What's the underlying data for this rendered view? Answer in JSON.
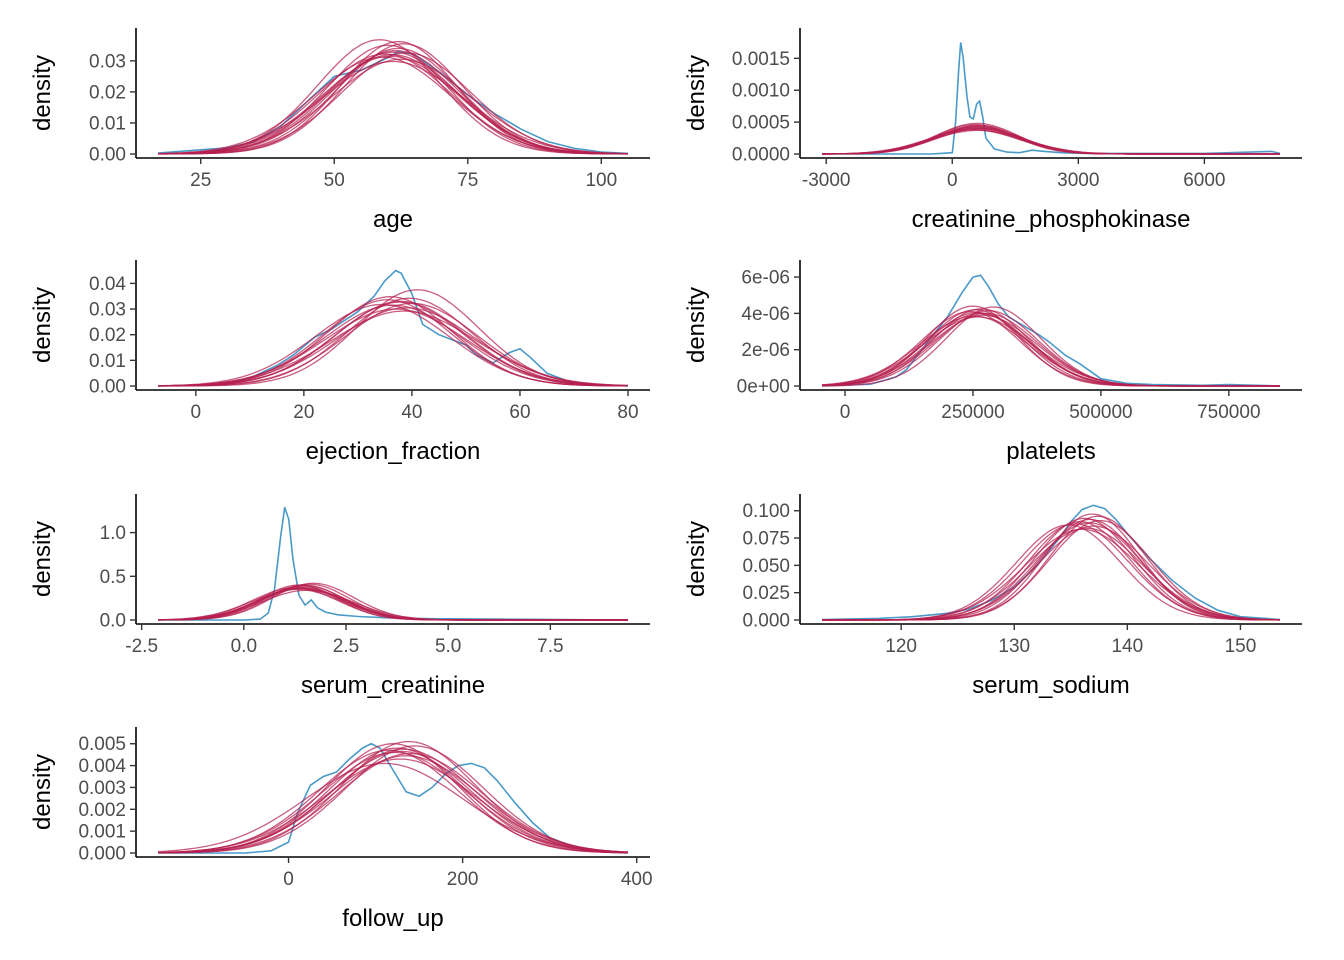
{
  "figure": {
    "colors": {
      "observed": "#4a9ac9",
      "imputed": "#b5204f"
    }
  },
  "chart_data": [
    {
      "type": "line",
      "title": "",
      "xlabel": "age",
      "ylabel": "density",
      "xlim": [
        17,
        105
      ],
      "ylim": [
        0,
        0.038
      ],
      "xticks": [
        25,
        50,
        75,
        100
      ],
      "yticks": [
        0.0,
        0.01,
        0.02,
        0.03
      ],
      "ytick_labels": [
        "0.00",
        "0.01",
        "0.02",
        "0.03"
      ],
      "grid": false,
      "legend": "none",
      "observed": {
        "x": [
          17,
          30,
          35,
          40,
          45,
          50,
          55,
          60,
          62,
          65,
          70,
          75,
          80,
          85,
          90,
          95,
          100,
          105
        ],
        "y": [
          0.0003,
          0.002,
          0.004,
          0.009,
          0.017,
          0.025,
          0.027,
          0.031,
          0.033,
          0.032,
          0.026,
          0.019,
          0.013,
          0.008,
          0.004,
          0.0018,
          0.0006,
          0.0002
        ]
      },
      "imputed": [
        {
          "mu": 61.0,
          "sd": 12.0,
          "peak": 0.0328
        },
        {
          "mu": 62.0,
          "sd": 11.6,
          "peak": 0.034
        },
        {
          "mu": 60.5,
          "sd": 12.6,
          "peak": 0.0315
        },
        {
          "mu": 63.0,
          "sd": 11.2,
          "peak": 0.0355
        },
        {
          "mu": 59.5,
          "sd": 12.3,
          "peak": 0.0322
        },
        {
          "mu": 61.5,
          "sd": 11.9,
          "peak": 0.0333
        },
        {
          "mu": 62.5,
          "sd": 12.9,
          "peak": 0.0305
        },
        {
          "mu": 60.0,
          "sd": 11.4,
          "peak": 0.035
        },
        {
          "mu": 58.5,
          "sd": 11.5,
          "peak": 0.0368
        },
        {
          "mu": 61.0,
          "sd": 13.2,
          "peak": 0.0298
        },
        {
          "mu": 63.5,
          "sd": 12.1,
          "peak": 0.0326
        },
        {
          "mu": 59.0,
          "sd": 12.7,
          "peak": 0.0312
        },
        {
          "mu": 62.0,
          "sd": 10.9,
          "peak": 0.0362
        },
        {
          "mu": 60.8,
          "sd": 12.4,
          "peak": 0.032
        }
      ]
    },
    {
      "type": "line",
      "title": "",
      "xlabel": "creatinine_phosphokinase",
      "ylabel": "density",
      "xlim": [
        -3100,
        7800
      ],
      "ylim": [
        0,
        0.00185
      ],
      "xticks": [
        -3000,
        0,
        3000,
        6000
      ],
      "yticks": [
        0.0,
        0.0005,
        0.001,
        0.0015
      ],
      "ytick_labels": [
        "0.0000",
        "0.0005",
        "0.0010",
        "0.0015"
      ],
      "grid": false,
      "legend": "none",
      "observed": {
        "x": [
          -3100,
          -500,
          0,
          80,
          150,
          200,
          260,
          350,
          420,
          500,
          580,
          650,
          720,
          800,
          1000,
          1300,
          1600,
          1900,
          2200,
          2600,
          3200,
          4500,
          6000,
          7600,
          7800
        ],
        "y": [
          0,
          0,
          2e-05,
          0.0005,
          0.0013,
          0.00175,
          0.0015,
          0.0009,
          0.00058,
          0.00055,
          0.00078,
          0.00083,
          0.0006,
          0.00025,
          8e-05,
          3e-05,
          2e-05,
          6e-05,
          4e-05,
          2e-05,
          1e-05,
          1e-05,
          1e-05,
          4e-05,
          1e-05
        ]
      },
      "imputed": [
        {
          "mu": 560,
          "sd": 1010,
          "peak": 0.00041
        },
        {
          "mu": 600,
          "sd": 980,
          "peak": 0.00043
        },
        {
          "mu": 520,
          "sd": 1060,
          "peak": 0.00039
        },
        {
          "mu": 640,
          "sd": 960,
          "peak": 0.00045
        },
        {
          "mu": 500,
          "sd": 1080,
          "peak": 0.00038
        },
        {
          "mu": 580,
          "sd": 1000,
          "peak": 0.00042
        },
        {
          "mu": 660,
          "sd": 1030,
          "peak": 0.0004
        },
        {
          "mu": 540,
          "sd": 940,
          "peak": 0.00046
        },
        {
          "mu": 610,
          "sd": 1110,
          "peak": 0.00037
        },
        {
          "mu": 570,
          "sd": 990,
          "peak": 0.00044
        },
        {
          "mu": 630,
          "sd": 1050,
          "peak": 0.0004
        },
        {
          "mu": 590,
          "sd": 970,
          "peak": 0.00048
        }
      ]
    },
    {
      "type": "line",
      "title": "",
      "xlabel": "ejection_fraction",
      "ylabel": "density",
      "xlim": [
        -7,
        80
      ],
      "ylim": [
        0,
        0.046
      ],
      "xticks": [
        0,
        20,
        40,
        60,
        80
      ],
      "yticks": [
        0.0,
        0.01,
        0.02,
        0.03,
        0.04
      ],
      "ytick_labels": [
        "0.00",
        "0.01",
        "0.02",
        "0.03",
        "0.04"
      ],
      "grid": false,
      "legend": "none",
      "observed": {
        "x": [
          -7,
          5,
          10,
          15,
          18,
          22,
          25,
          30,
          33,
          35,
          37,
          38,
          40,
          42,
          45,
          50,
          52,
          55,
          58,
          60,
          62,
          65,
          70,
          80
        ],
        "y": [
          0,
          0.0005,
          0.003,
          0.008,
          0.012,
          0.019,
          0.022,
          0.029,
          0.035,
          0.041,
          0.045,
          0.044,
          0.036,
          0.024,
          0.02,
          0.016,
          0.012,
          0.009,
          0.013,
          0.0145,
          0.011,
          0.005,
          0.001,
          0
        ]
      },
      "imputed": [
        {
          "mu": 38.0,
          "sd": 12.0,
          "peak": 0.033
        },
        {
          "mu": 36.5,
          "sd": 12.5,
          "peak": 0.0315
        },
        {
          "mu": 39.5,
          "sd": 11.6,
          "peak": 0.0342
        },
        {
          "mu": 37.0,
          "sd": 13.0,
          "peak": 0.03
        },
        {
          "mu": 40.0,
          "sd": 12.2,
          "peak": 0.0322
        },
        {
          "mu": 35.5,
          "sd": 11.8,
          "peak": 0.0336
        },
        {
          "mu": 38.5,
          "sd": 13.4,
          "peak": 0.0292
        },
        {
          "mu": 41.0,
          "sd": 11.3,
          "peak": 0.0375
        },
        {
          "mu": 34.5,
          "sd": 12.4,
          "peak": 0.0318
        },
        {
          "mu": 37.8,
          "sd": 12.0,
          "peak": 0.0327
        },
        {
          "mu": 39.0,
          "sd": 12.8,
          "peak": 0.0305
        },
        {
          "mu": 36.0,
          "sd": 11.5,
          "peak": 0.0348
        }
      ]
    },
    {
      "type": "line",
      "title": "",
      "xlabel": "platelets",
      "ylabel": "density",
      "xlim": [
        -45000,
        850000
      ],
      "ylim": [
        0,
        6.5e-06
      ],
      "xticks": [
        0,
        250000,
        500000,
        750000
      ],
      "yticks": [
        0,
        2e-06,
        4e-06,
        6e-06
      ],
      "ytick_labels": [
        "0e+00",
        "2e-06",
        "4e-06",
        "6e-06"
      ],
      "grid": false,
      "legend": "none",
      "observed": {
        "x": [
          -45000,
          50000,
          100000,
          120000,
          150000,
          180000,
          200000,
          230000,
          250000,
          265000,
          280000,
          300000,
          320000,
          350000,
          380000,
          400000,
          430000,
          460000,
          500000,
          550000,
          600000,
          700000,
          750000,
          850000
        ],
        "y": [
          0,
          1e-07,
          5e-07,
          9e-07,
          2e-06,
          3.1e-06,
          3.8e-06,
          5.2e-06,
          6e-06,
          6.1e-06,
          5.5e-06,
          4.5e-06,
          3.8e-06,
          3.3e-06,
          2.8e-06,
          2.4e-06,
          1.7e-06,
          1.2e-06,
          4e-07,
          1.5e-07,
          8e-08,
          4e-08,
          8e-08,
          0
        ]
      },
      "imputed": [
        {
          "mu": 263000,
          "sd": 98000,
          "peak": 4e-06
        },
        {
          "mu": 255000,
          "sd": 94000,
          "peak": 4.2e-06
        },
        {
          "mu": 270000,
          "sd": 102000,
          "peak": 3.9e-06
        },
        {
          "mu": 250000,
          "sd": 90000,
          "peak": 4.4e-06
        },
        {
          "mu": 275000,
          "sd": 100000,
          "peak": 4e-06
        },
        {
          "mu": 260000,
          "sd": 106000,
          "peak": 3.8e-06
        },
        {
          "mu": 245000,
          "sd": 96000,
          "peak": 4.1e-06
        },
        {
          "mu": 290000,
          "sd": 92000,
          "peak": 4.35e-06
        },
        {
          "mu": 258000,
          "sd": 99000,
          "peak": 4.05e-06
        },
        {
          "mu": 266000,
          "sd": 93000,
          "peak": 4.25e-06
        },
        {
          "mu": 252000,
          "sd": 104000,
          "peak": 3.85e-06
        },
        {
          "mu": 280000,
          "sd": 97000,
          "peak": 4.15e-06
        }
      ]
    },
    {
      "type": "line",
      "title": "",
      "xlabel": "serum_creatinine",
      "ylabel": "density",
      "xlim": [
        -2.1,
        9.4
      ],
      "ylim": [
        0,
        1.35
      ],
      "xticks": [
        -2.5,
        0.0,
        2.5,
        5.0,
        7.5
      ],
      "xtick_labels": [
        "-2.5",
        "0.0",
        "2.5",
        "5.0",
        "7.5"
      ],
      "yticks": [
        0.0,
        0.5,
        1.0
      ],
      "ytick_labels": [
        "0.0",
        "0.5",
        "1.0"
      ],
      "grid": false,
      "legend": "none",
      "observed": {
        "x": [
          -2.1,
          0.0,
          0.4,
          0.6,
          0.75,
          0.9,
          1.0,
          1.1,
          1.2,
          1.35,
          1.5,
          1.65,
          1.8,
          2.0,
          2.3,
          2.8,
          3.5,
          4.5,
          6.0,
          9.4
        ],
        "y": [
          0,
          0,
          0.01,
          0.08,
          0.35,
          0.95,
          1.29,
          1.15,
          0.7,
          0.28,
          0.17,
          0.23,
          0.14,
          0.09,
          0.06,
          0.04,
          0.025,
          0.015,
          0.01,
          0
        ]
      },
      "imputed": [
        {
          "mu": 1.4,
          "sd": 1.05,
          "peak": 0.37
        },
        {
          "mu": 1.5,
          "sd": 1.0,
          "peak": 0.39
        },
        {
          "mu": 1.3,
          "sd": 1.1,
          "peak": 0.35
        },
        {
          "mu": 1.6,
          "sd": 0.98,
          "peak": 0.41
        },
        {
          "mu": 1.45,
          "sd": 1.08,
          "peak": 0.36
        },
        {
          "mu": 1.35,
          "sd": 0.95,
          "peak": 0.4
        },
        {
          "mu": 1.55,
          "sd": 1.12,
          "peak": 0.34
        },
        {
          "mu": 1.42,
          "sd": 1.02,
          "peak": 0.38
        },
        {
          "mu": 1.7,
          "sd": 1.0,
          "peak": 0.42
        },
        {
          "mu": 1.25,
          "sd": 1.04,
          "peak": 0.37
        },
        {
          "mu": 1.48,
          "sd": 0.97,
          "peak": 0.4
        },
        {
          "mu": 1.38,
          "sd": 1.06,
          "peak": 0.36
        }
      ]
    },
    {
      "type": "line",
      "title": "",
      "xlabel": "serum_sodium",
      "ylabel": "density",
      "xlim": [
        113,
        153.5
      ],
      "ylim": [
        0,
        0.108
      ],
      "xticks": [
        120,
        130,
        140,
        150
      ],
      "yticks": [
        0.0,
        0.025,
        0.05,
        0.075,
        0.1
      ],
      "ytick_labels": [
        "0.000",
        "0.025",
        "0.050",
        "0.075",
        "0.100"
      ],
      "grid": false,
      "legend": "none",
      "observed": {
        "x": [
          113,
          118,
          121,
          124,
          126,
          128,
          130,
          132,
          134,
          135,
          136,
          137,
          138,
          139,
          140,
          142,
          144,
          146,
          148,
          150,
          153.5
        ],
        "y": [
          0.0005,
          0.0015,
          0.003,
          0.006,
          0.01,
          0.018,
          0.03,
          0.05,
          0.075,
          0.09,
          0.101,
          0.105,
          0.102,
          0.092,
          0.079,
          0.056,
          0.036,
          0.02,
          0.009,
          0.003,
          0.0005
        ]
      },
      "imputed": [
        {
          "mu": 136.6,
          "sd": 4.6,
          "peak": 0.089
        },
        {
          "mu": 136.2,
          "sd": 4.4,
          "peak": 0.093
        },
        {
          "mu": 137.0,
          "sd": 4.8,
          "peak": 0.086
        },
        {
          "mu": 135.8,
          "sd": 4.5,
          "peak": 0.09
        },
        {
          "mu": 137.4,
          "sd": 4.3,
          "peak": 0.095
        },
        {
          "mu": 136.4,
          "sd": 4.9,
          "peak": 0.084
        },
        {
          "mu": 135.4,
          "sd": 4.7,
          "peak": 0.088
        },
        {
          "mu": 136.9,
          "sd": 4.2,
          "peak": 0.097
        },
        {
          "mu": 134.8,
          "sd": 4.6,
          "peak": 0.087
        },
        {
          "mu": 137.6,
          "sd": 4.5,
          "peak": 0.091
        },
        {
          "mu": 136.0,
          "sd": 5.0,
          "peak": 0.083
        },
        {
          "mu": 136.7,
          "sd": 4.4,
          "peak": 0.092
        }
      ]
    },
    {
      "type": "line",
      "title": "",
      "xlabel": "follow_up",
      "ylabel": "density",
      "xlim": [
        -150,
        390
      ],
      "ylim": [
        0,
        0.0054
      ],
      "xticks": [
        0,
        200,
        400
      ],
      "yticks": [
        0.0,
        0.001,
        0.002,
        0.003,
        0.004,
        0.005
      ],
      "ytick_labels": [
        "0.000",
        "0.001",
        "0.002",
        "0.003",
        "0.004",
        "0.005"
      ],
      "grid": false,
      "legend": "none",
      "observed": {
        "x": [
          -150,
          -50,
          -20,
          0,
          10,
          25,
          40,
          55,
          70,
          85,
          95,
          105,
          120,
          135,
          150,
          165,
          180,
          195,
          210,
          225,
          240,
          260,
          280,
          300,
          330,
          360,
          390
        ],
        "y": [
          0,
          0,
          0.0001,
          0.0005,
          0.0018,
          0.0031,
          0.0035,
          0.0037,
          0.0043,
          0.0048,
          0.005,
          0.0048,
          0.0038,
          0.0028,
          0.0026,
          0.003,
          0.0036,
          0.004,
          0.0041,
          0.0039,
          0.0033,
          0.0023,
          0.0014,
          0.0007,
          0.00025,
          5e-05,
          0
        ]
      },
      "imputed": [
        {
          "mu": 130,
          "sd": 80,
          "peak": 0.00465
        },
        {
          "mu": 125,
          "sd": 78,
          "peak": 0.0048
        },
        {
          "mu": 140,
          "sd": 82,
          "peak": 0.00455
        },
        {
          "mu": 120,
          "sd": 76,
          "peak": 0.005
        },
        {
          "mu": 135,
          "sd": 84,
          "peak": 0.00445
        },
        {
          "mu": 115,
          "sd": 80,
          "peak": 0.0047
        },
        {
          "mu": 145,
          "sd": 79,
          "peak": 0.0049
        },
        {
          "mu": 128,
          "sd": 86,
          "peak": 0.0043
        },
        {
          "mu": 110,
          "sd": 90,
          "peak": 0.0041
        },
        {
          "mu": 138,
          "sd": 77,
          "peak": 0.0051
        },
        {
          "mu": 122,
          "sd": 83,
          "peak": 0.0046
        },
        {
          "mu": 132,
          "sd": 81,
          "peak": 0.00475
        }
      ]
    }
  ]
}
